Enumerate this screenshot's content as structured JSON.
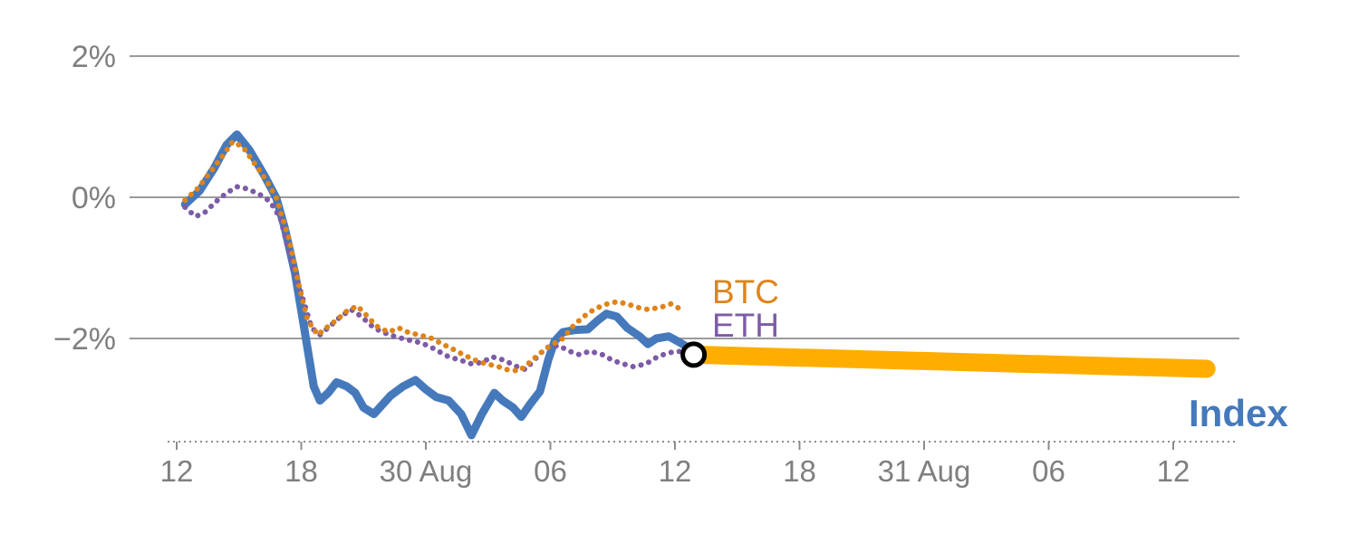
{
  "page": {
    "background": "#FFFFFF"
  },
  "chart_data": {
    "type": "line",
    "title": "",
    "description_visible_elements": "Percentage change line chart with dotted BTC and ETH series, thick solid Index series, and an amber projection band starting at a black ring marker",
    "x_axis": {
      "unit": "time",
      "tick_positions_hours": [
        0,
        6,
        12,
        18,
        24,
        30,
        36,
        42,
        48
      ],
      "tick_labels": [
        "12",
        "18",
        "30 Aug",
        "06",
        "12",
        "18",
        "31 Aug",
        "06",
        "12"
      ],
      "grid": false
    },
    "y_axis": {
      "tick_values": [
        2,
        0,
        -2
      ],
      "tick_labels": [
        "2%",
        "0%",
        "−2%"
      ],
      "range": [
        -3.7,
        2.6
      ],
      "grid": true
    },
    "colors": {
      "grid": "#9B9B9B",
      "axis": "#8C8C8C",
      "tick_text": "#7F7F7F"
    },
    "series": [
      {
        "name": "Index",
        "color": "#4579BB",
        "style": "solid",
        "width": 9,
        "points": [
          [
            0.4,
            -0.1
          ],
          [
            1.1,
            0.09
          ],
          [
            1.8,
            0.41
          ],
          [
            2.4,
            0.74
          ],
          [
            2.9,
            0.89
          ],
          [
            3.5,
            0.67
          ],
          [
            4.2,
            0.32
          ],
          [
            4.8,
            -0.01
          ],
          [
            5.2,
            -0.43
          ],
          [
            5.7,
            -1.07
          ],
          [
            6.1,
            -1.78
          ],
          [
            6.6,
            -2.68
          ],
          [
            6.9,
            -2.88
          ],
          [
            7.3,
            -2.77
          ],
          [
            7.7,
            -2.62
          ],
          [
            8.2,
            -2.68
          ],
          [
            8.6,
            -2.77
          ],
          [
            9.0,
            -2.98
          ],
          [
            9.5,
            -3.07
          ],
          [
            9.9,
            -2.94
          ],
          [
            10.3,
            -2.81
          ],
          [
            10.9,
            -2.68
          ],
          [
            11.5,
            -2.59
          ],
          [
            12.0,
            -2.72
          ],
          [
            12.5,
            -2.83
          ],
          [
            13.1,
            -2.88
          ],
          [
            13.7,
            -3.07
          ],
          [
            14.2,
            -3.37
          ],
          [
            14.7,
            -3.07
          ],
          [
            15.3,
            -2.77
          ],
          [
            15.7,
            -2.88
          ],
          [
            16.2,
            -2.98
          ],
          [
            16.6,
            -3.11
          ],
          [
            17.0,
            -2.94
          ],
          [
            17.5,
            -2.75
          ],
          [
            17.9,
            -2.3
          ],
          [
            18.2,
            -2.04
          ],
          [
            18.6,
            -1.91
          ],
          [
            19.2,
            -1.88
          ],
          [
            19.8,
            -1.87
          ],
          [
            20.3,
            -1.74
          ],
          [
            20.7,
            -1.65
          ],
          [
            21.2,
            -1.69
          ],
          [
            21.7,
            -1.85
          ],
          [
            22.3,
            -1.97
          ],
          [
            22.7,
            -2.08
          ],
          [
            23.1,
            -2.0
          ],
          [
            23.7,
            -1.97
          ],
          [
            24.2,
            -2.05
          ],
          [
            24.7,
            -2.14
          ]
        ]
      },
      {
        "name": "BTC",
        "color": "#DE8418",
        "style": "dotted",
        "width": 6,
        "points": [
          [
            0.4,
            -0.04
          ],
          [
            1.0,
            0.12
          ],
          [
            1.6,
            0.35
          ],
          [
            2.2,
            0.58
          ],
          [
            2.7,
            0.79
          ],
          [
            3.2,
            0.71
          ],
          [
            3.7,
            0.5
          ],
          [
            4.3,
            0.25
          ],
          [
            4.8,
            -0.01
          ],
          [
            5.4,
            -0.58
          ],
          [
            5.9,
            -1.26
          ],
          [
            6.3,
            -1.74
          ],
          [
            6.8,
            -1.95
          ],
          [
            7.2,
            -1.85
          ],
          [
            7.7,
            -1.74
          ],
          [
            8.2,
            -1.61
          ],
          [
            8.7,
            -1.54
          ],
          [
            9.2,
            -1.69
          ],
          [
            9.6,
            -1.82
          ],
          [
            10.2,
            -1.91
          ],
          [
            10.7,
            -1.85
          ],
          [
            11.2,
            -1.92
          ],
          [
            11.7,
            -1.95
          ],
          [
            12.3,
            -2.0
          ],
          [
            12.8,
            -2.08
          ],
          [
            13.3,
            -2.15
          ],
          [
            13.8,
            -2.23
          ],
          [
            14.4,
            -2.31
          ],
          [
            14.9,
            -2.36
          ],
          [
            15.4,
            -2.39
          ],
          [
            15.9,
            -2.44
          ],
          [
            16.5,
            -2.46
          ],
          [
            17.0,
            -2.34
          ],
          [
            17.5,
            -2.21
          ],
          [
            18.0,
            -2.1
          ],
          [
            18.6,
            -2.0
          ],
          [
            19.1,
            -1.82
          ],
          [
            19.6,
            -1.69
          ],
          [
            20.1,
            -1.59
          ],
          [
            20.6,
            -1.52
          ],
          [
            21.2,
            -1.48
          ],
          [
            21.7,
            -1.51
          ],
          [
            22.2,
            -1.56
          ],
          [
            22.7,
            -1.59
          ],
          [
            23.3,
            -1.56
          ],
          [
            23.8,
            -1.51
          ],
          [
            24.3,
            -1.59
          ]
        ]
      },
      {
        "name": "ETH",
        "color": "#7D5BA6",
        "style": "dotted",
        "width": 6,
        "points": [
          [
            0.4,
            -0.14
          ],
          [
            0.9,
            -0.27
          ],
          [
            1.3,
            -0.23
          ],
          [
            1.9,
            -0.06
          ],
          [
            2.4,
            0.06
          ],
          [
            2.9,
            0.15
          ],
          [
            3.4,
            0.12
          ],
          [
            4.0,
            0.04
          ],
          [
            4.5,
            -0.06
          ],
          [
            5.0,
            -0.3
          ],
          [
            5.5,
            -0.88
          ],
          [
            6.1,
            -1.46
          ],
          [
            6.5,
            -1.85
          ],
          [
            6.9,
            -1.95
          ],
          [
            7.4,
            -1.82
          ],
          [
            7.9,
            -1.69
          ],
          [
            8.4,
            -1.59
          ],
          [
            8.9,
            -1.69
          ],
          [
            9.5,
            -1.85
          ],
          [
            10.0,
            -1.92
          ],
          [
            10.5,
            -1.97
          ],
          [
            11.0,
            -2.01
          ],
          [
            11.6,
            -2.05
          ],
          [
            12.1,
            -2.1
          ],
          [
            12.6,
            -2.18
          ],
          [
            13.1,
            -2.26
          ],
          [
            13.7,
            -2.31
          ],
          [
            14.2,
            -2.36
          ],
          [
            14.7,
            -2.34
          ],
          [
            15.2,
            -2.26
          ],
          [
            15.8,
            -2.31
          ],
          [
            16.3,
            -2.39
          ],
          [
            16.8,
            -2.44
          ],
          [
            17.3,
            -2.28
          ],
          [
            17.8,
            -2.13
          ],
          [
            18.4,
            -2.1
          ],
          [
            18.9,
            -2.18
          ],
          [
            19.4,
            -2.23
          ],
          [
            19.9,
            -2.18
          ],
          [
            20.5,
            -2.23
          ],
          [
            21.0,
            -2.31
          ],
          [
            21.5,
            -2.36
          ],
          [
            22.0,
            -2.4
          ],
          [
            22.6,
            -2.36
          ],
          [
            23.1,
            -2.27
          ],
          [
            23.6,
            -2.21
          ],
          [
            24.1,
            -2.18
          ],
          [
            24.7,
            -2.21
          ]
        ]
      }
    ],
    "forecast_band": {
      "color": "#FFAE00",
      "width": 20,
      "start": {
        "t_hours": 24.9,
        "pct": -2.23
      },
      "end": {
        "t_hours": 49.6,
        "pct": -2.43
      }
    },
    "marker": {
      "t_hours": 24.9,
      "pct": -2.23,
      "radius": 12,
      "ring_color": "#000000",
      "ring_width": 5,
      "fill": "#FFFFFF"
    },
    "labels": {
      "btc": "BTC",
      "eth": "ETH",
      "index": "Index"
    }
  }
}
